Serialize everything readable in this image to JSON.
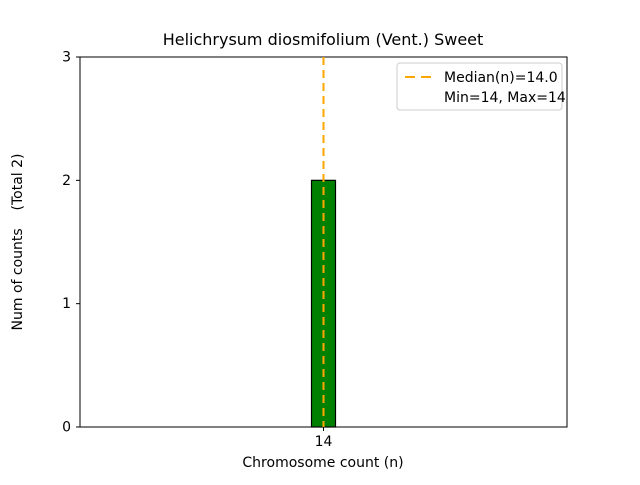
{
  "chart_data": {
    "type": "bar",
    "title": "Helichrysum diosmifolium (Vent.) Sweet",
    "xlabel": "Chromosome count (n)",
    "ylabel": "Num of counts    (Total 2)",
    "categories": [
      "14"
    ],
    "values": [
      2
    ],
    "ylim": [
      0,
      3
    ],
    "yticks": [
      0,
      1,
      2,
      3
    ],
    "grid": false,
    "bar_color": "#008000",
    "bar_edge_color": "#000000",
    "median_line_color": "#ffa500",
    "legend": {
      "position": "upper right",
      "median_label": "Median(n)=14.0",
      "minmax_label": "Min=14, Max=14"
    }
  }
}
